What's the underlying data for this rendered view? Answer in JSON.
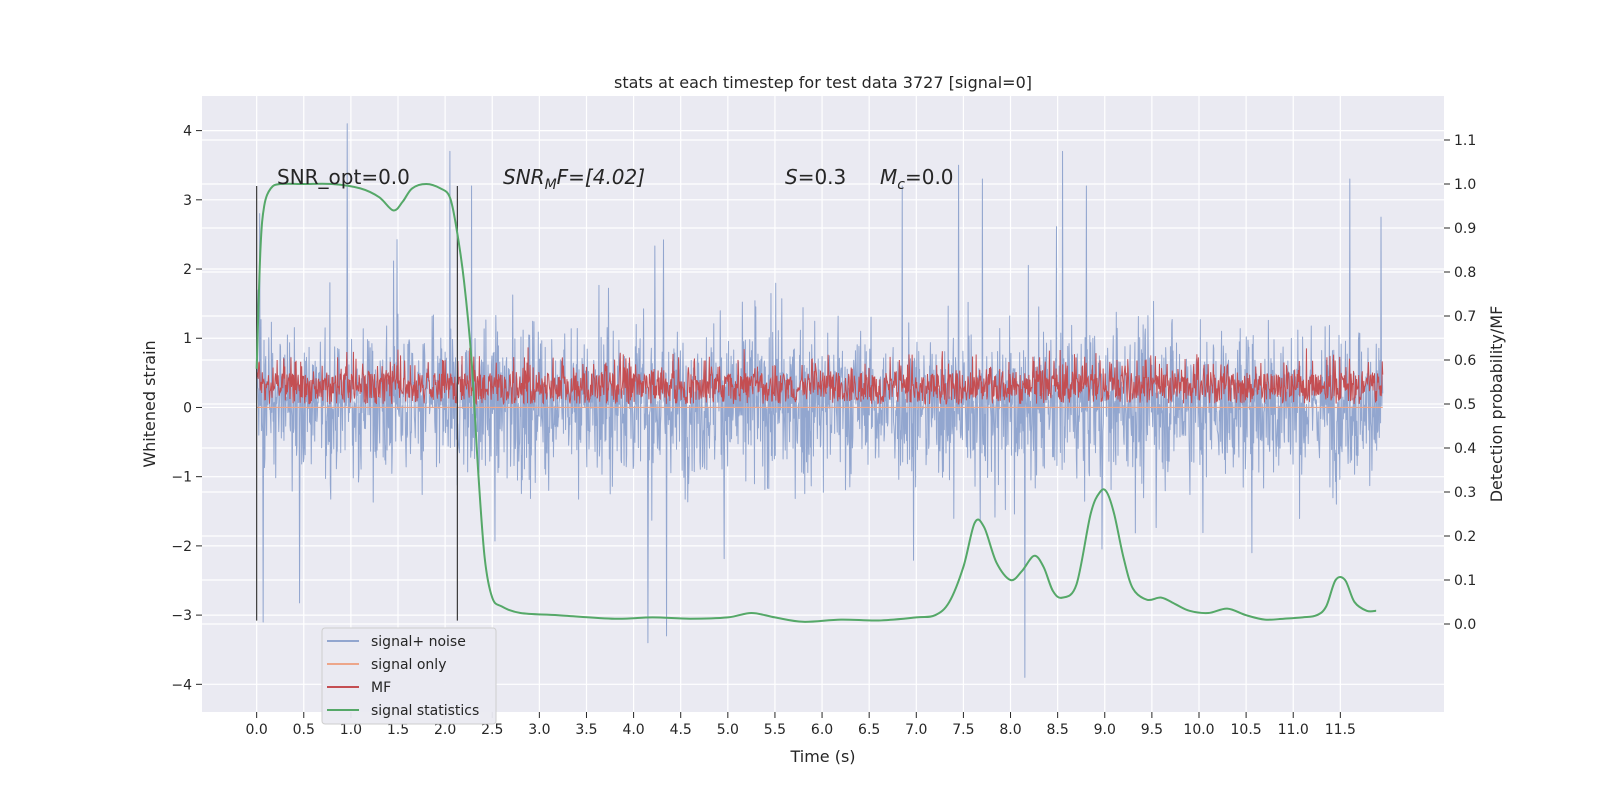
{
  "chart_data": {
    "type": "line",
    "title": "stats at each timestep for test data 3727 [signal=0]",
    "xlabel": "Time (s)",
    "ylabel_left": "Whitened strain",
    "ylabel_right": "Detection probability/MF",
    "xlim": [
      -0.58,
      12.6
    ],
    "ylim_left": [
      -4.4,
      4.5
    ],
    "ylim_right": [
      -0.2,
      1.2
    ],
    "x_ticks": [
      "0.0",
      "0.5",
      "1.0",
      "1.5",
      "2.0",
      "2.5",
      "3.0",
      "3.5",
      "4.0",
      "4.5",
      "5.0",
      "5.5",
      "6.0",
      "6.5",
      "7.0",
      "7.5",
      "8.0",
      "8.5",
      "9.0",
      "9.5",
      "10.0",
      "10.5",
      "11.0",
      "11.5"
    ],
    "y_ticks_left": [
      "4",
      "3",
      "2",
      "1",
      "0",
      "−1",
      "−2",
      "−3",
      "−4"
    ],
    "y_ticks_right": [
      "1.1",
      "1.0",
      "0.9",
      "0.8",
      "0.7",
      "0.6",
      "0.5",
      "0.4",
      "0.3",
      "0.2",
      "0.1",
      "0.0"
    ],
    "grid": true,
    "legend_position": "lower-left",
    "annotations": {
      "snr_opt": "SNR_opt=0.0",
      "snr_mf_sym": "SNR",
      "snr_mf_sub": "M",
      "snr_mf_rest": "F=[4.02]",
      "s_sym": "S",
      "s_rest": "=0.3",
      "mc_sym": "M",
      "mc_sub": "c",
      "mc_rest": "=0.0"
    },
    "vertical_markers": [
      0.0,
      2.13
    ],
    "series": [
      {
        "name": "signal+ noise",
        "color": "#92a6cf",
        "axis": "left",
        "x_range": [
          0.0,
          11.95
        ],
        "envelope_typical": [
          -1.9,
          2.0
        ],
        "peaks": [
          {
            "x": 0.03,
            "y": 2.8
          },
          {
            "x": 0.07,
            "y": -3.1
          },
          {
            "x": 0.96,
            "y": 4.1
          },
          {
            "x": 2.05,
            "y": 3.7
          },
          {
            "x": 2.28,
            "y": 3.2
          },
          {
            "x": 4.15,
            "y": -3.4
          },
          {
            "x": 4.35,
            "y": -3.3
          },
          {
            "x": 6.85,
            "y": 3.2
          },
          {
            "x": 7.45,
            "y": 3.5
          },
          {
            "x": 7.7,
            "y": 3.3
          },
          {
            "x": 8.15,
            "y": -3.9
          },
          {
            "x": 8.55,
            "y": 3.7
          },
          {
            "x": 8.95,
            "y": -1.0
          },
          {
            "x": 11.6,
            "y": 3.3
          },
          {
            "x": 11.93,
            "y": 2.75
          }
        ]
      },
      {
        "name": "signal only",
        "color": "#eda68a",
        "axis": "left",
        "values": "flat at 0"
      },
      {
        "name": "MF",
        "color": "#c44e52",
        "axis": "right",
        "x_range": [
          0.0,
          11.95
        ],
        "typical_range": [
          0.5,
          0.62
        ],
        "baseline_low": 0.5
      },
      {
        "name": "signal statistics",
        "color": "#55a868",
        "axis": "right",
        "x": [
          0.0,
          0.04,
          0.08,
          0.15,
          0.25,
          0.5,
          0.8,
          1.1,
          1.3,
          1.45,
          1.55,
          1.65,
          1.8,
          1.95,
          2.05,
          2.12,
          2.2,
          2.28,
          2.35,
          2.42,
          2.5,
          2.6,
          2.8,
          3.2,
          3.8,
          4.2,
          4.6,
          5.0,
          5.25,
          5.5,
          5.8,
          6.2,
          6.6,
          7.0,
          7.2,
          7.35,
          7.5,
          7.62,
          7.72,
          7.85,
          8.0,
          8.12,
          8.25,
          8.35,
          8.45,
          8.55,
          8.7,
          8.85,
          8.95,
          9.02,
          9.1,
          9.2,
          9.3,
          9.45,
          9.6,
          9.75,
          9.9,
          10.1,
          10.3,
          10.5,
          10.7,
          10.9,
          11.1,
          11.25,
          11.35,
          11.45,
          11.55,
          11.65,
          11.78,
          11.88
        ],
        "y": [
          0.58,
          0.85,
          0.95,
          0.99,
          1.0,
          1.0,
          1.0,
          0.99,
          0.97,
          0.94,
          0.96,
          0.99,
          1.0,
          0.99,
          0.97,
          0.9,
          0.78,
          0.6,
          0.35,
          0.15,
          0.06,
          0.04,
          0.025,
          0.02,
          0.012,
          0.015,
          0.012,
          0.015,
          0.025,
          0.015,
          0.005,
          0.01,
          0.008,
          0.015,
          0.02,
          0.05,
          0.13,
          0.23,
          0.22,
          0.14,
          0.1,
          0.12,
          0.155,
          0.13,
          0.075,
          0.06,
          0.09,
          0.25,
          0.3,
          0.3,
          0.25,
          0.15,
          0.08,
          0.055,
          0.06,
          0.045,
          0.03,
          0.025,
          0.035,
          0.02,
          0.01,
          0.012,
          0.015,
          0.02,
          0.04,
          0.1,
          0.1,
          0.05,
          0.03,
          0.03
        ]
      }
    ]
  }
}
